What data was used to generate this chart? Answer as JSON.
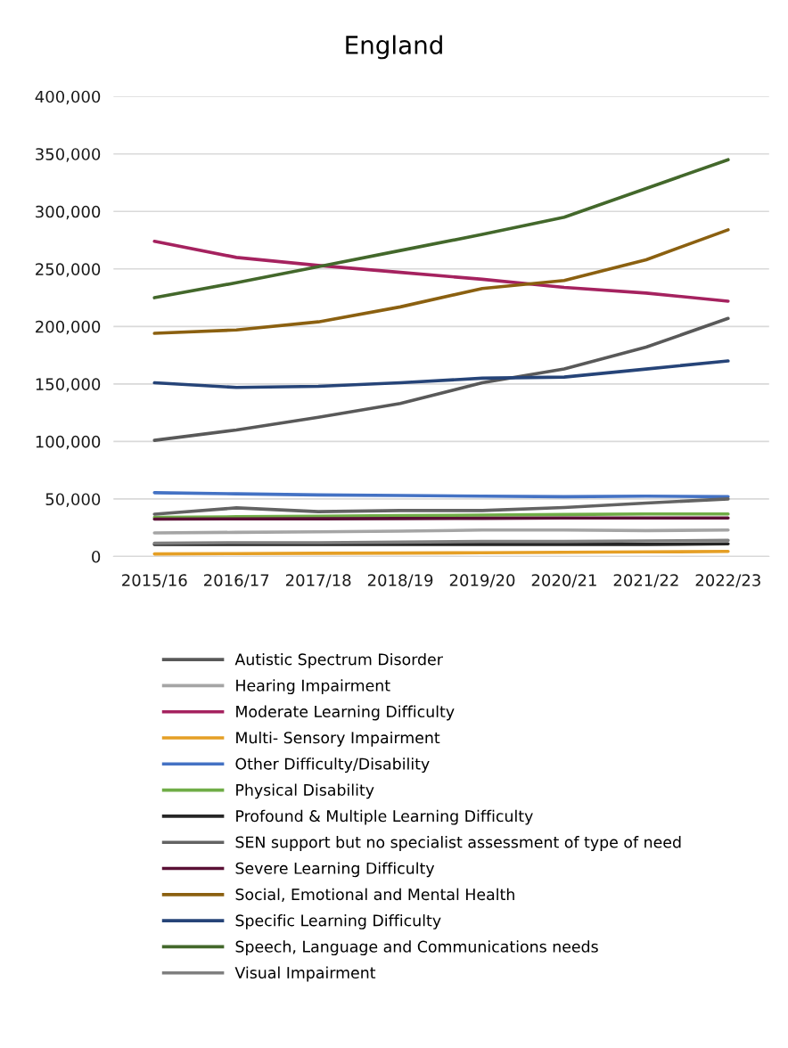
{
  "chart_data": {
    "type": "line",
    "title": "England",
    "categories": [
      "2015/16",
      "2016/17",
      "2017/18",
      "2018/19",
      "2019/20",
      "2020/21",
      "2021/22",
      "2022/23"
    ],
    "ylim": [
      0,
      400000
    ],
    "yticks": [
      {
        "value": 0,
        "label": "0"
      },
      {
        "value": 50000,
        "label": "50,000"
      },
      {
        "value": 100000,
        "label": "100,000"
      },
      {
        "value": 150000,
        "label": "150,000"
      },
      {
        "value": 200000,
        "label": "200,000"
      },
      {
        "value": 250000,
        "label": "250,000"
      },
      {
        "value": 300000,
        "label": "300,000"
      },
      {
        "value": 350000,
        "label": "350,000"
      },
      {
        "value": 400000,
        "label": "400,000"
      }
    ],
    "grid": "y",
    "legend": "bottom",
    "marker": "none",
    "line_style": "solid",
    "series": [
      {
        "name": "Autistic Spectrum Disorder",
        "color": "#595959",
        "values": [
          101000,
          110000,
          121000,
          133000,
          151000,
          163000,
          182000,
          207000
        ]
      },
      {
        "name": "Hearing Impairment",
        "color": "#a5a5a5",
        "values": [
          20500,
          21000,
          21500,
          22000,
          23000,
          23000,
          22500,
          23000
        ]
      },
      {
        "name": "Moderate Learning Difficulty",
        "color": "#a5225f",
        "values": [
          274000,
          260000,
          253000,
          247000,
          241000,
          234000,
          229000,
          222000
        ]
      },
      {
        "name": "Multi- Sensory Impairment",
        "color": "#e59f25",
        "values": [
          2200,
          2500,
          2800,
          3000,
          3300,
          3600,
          4000,
          4400
        ]
      },
      {
        "name": "Other Difficulty/Disability",
        "color": "#4472c4",
        "values": [
          55500,
          54500,
          53500,
          53000,
          52500,
          52000,
          52500,
          52000
        ]
      },
      {
        "name": "Physical Disability",
        "color": "#70ad47",
        "values": [
          34000,
          34500,
          35000,
          35500,
          36000,
          36500,
          37000,
          37000
        ]
      },
      {
        "name": "Profound & Multiple Learning Difficulty",
        "color": "#262626",
        "values": [
          10500,
          10500,
          10500,
          10500,
          10500,
          10500,
          10500,
          11000
        ]
      },
      {
        "name": "SEN support but no specialist assessment of type of need",
        "color": "#636363",
        "values": [
          36800,
          42300,
          39000,
          40000,
          40000,
          42600,
          46500,
          50000
        ]
      },
      {
        "name": "Severe Learning Difficulty",
        "color": "#5a1035",
        "values": [
          32500,
          32700,
          32800,
          33000,
          33200,
          33500,
          33500,
          33500
        ]
      },
      {
        "name": "Social, Emotional and Mental Health",
        "color": "#8b6010",
        "values": [
          194000,
          197000,
          204000,
          217000,
          233000,
          240000,
          258000,
          284000
        ]
      },
      {
        "name": "Specific Learning Difficulty",
        "color": "#264478",
        "values": [
          151000,
          147000,
          148000,
          151000,
          155000,
          156000,
          163000,
          170000
        ]
      },
      {
        "name": "Speech, Language and Communications needs",
        "color": "#43682b",
        "values": [
          225000,
          238000,
          252000,
          266000,
          280000,
          295000,
          320000,
          345000
        ]
      },
      {
        "name": "Visual Impairment",
        "color": "#7f7f7f",
        "values": [
          11500,
          12000,
          12000,
          12500,
          13000,
          13000,
          13500,
          14000
        ]
      }
    ]
  }
}
